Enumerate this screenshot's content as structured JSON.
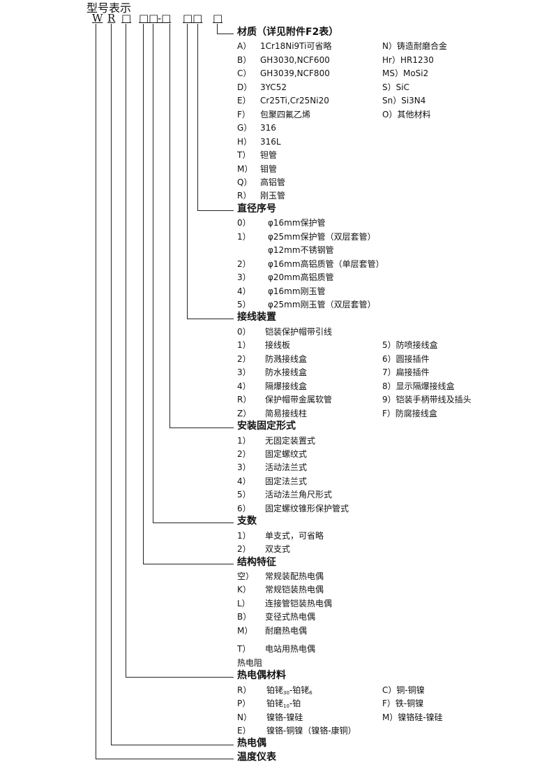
{
  "title": "型号表示",
  "codes": [
    "W",
    "R",
    "□",
    "□□",
    "-□",
    "□□",
    "□"
  ],
  "sections": [
    {
      "heading": "材质（详见附件F2表）",
      "items": [
        {
          "label": "A）",
          "text": "1Cr18Ni9Ti可省略",
          "right": "N）铸造耐磨合金"
        },
        {
          "label": "B）",
          "text": "GH3030,NCF600",
          "right": "Hr）HR1230"
        },
        {
          "label": "C）",
          "text": "GH3039,NCF800",
          "right": "MS）MoSi2"
        },
        {
          "label": "D）",
          "text": "3YC52",
          "right": "S）SiC"
        },
        {
          "label": "E）",
          "text": "Cr25Ti,Cr25Ni20",
          "right": "Sn）Si3N4"
        },
        {
          "label": "F）",
          "text": "包聚四氟乙烯",
          "right": "O）其他材料"
        },
        {
          "label": "G）",
          "text": "316"
        },
        {
          "label": "H）",
          "text": "316L"
        },
        {
          "label": "T）",
          "text": "钽管"
        },
        {
          "label": "M）",
          "text": "钼管"
        },
        {
          "label": "Q）",
          "text": "高铝管"
        },
        {
          "label": "R）",
          "text": "刚玉管"
        }
      ]
    },
    {
      "heading": "直径序号",
      "items": [
        {
          "label": "0）",
          "text": "φ16mm保护管"
        },
        {
          "label": "1）",
          "text": "φ25mm保护管（双层套管）"
        },
        {
          "label": "",
          "text": "φ12mm不锈钢管"
        },
        {
          "label": "2）",
          "text": "φ16mm高铝质管（单层套管）"
        },
        {
          "label": "3）",
          "text": "φ20mm高铝质管"
        },
        {
          "label": "4）",
          "text": "φ16mm刚玉管"
        },
        {
          "label": "5）",
          "text": "φ25mm刚玉管（双层套管）"
        }
      ]
    },
    {
      "heading": "接线装置",
      "items": [
        {
          "label": "0）",
          "text": "铠装保护帽带引线"
        },
        {
          "label": "1）",
          "text": "接线板",
          "right": "5）防喷接线盒"
        },
        {
          "label": "2）",
          "text": "防溅接线盒",
          "right": "6）圆接插件"
        },
        {
          "label": "3）",
          "text": "防水接线盒",
          "right": "7）扁接插件"
        },
        {
          "label": "4）",
          "text": "隔爆接线盒",
          "right": "8）显示隔爆接线盒"
        },
        {
          "label": "R）",
          "text": "保护帽带金属软管",
          "right": "9）铠装手柄带线及插头"
        },
        {
          "label": "Z）",
          "text": "简易接线柱",
          "right": "F）防腐接线盒"
        }
      ]
    },
    {
      "heading": "安装固定形式",
      "items": [
        {
          "label": "1）",
          "text": "无固定装置式"
        },
        {
          "label": "2）",
          "text": "固定螺纹式"
        },
        {
          "label": "3）",
          "text": "活动法兰式"
        },
        {
          "label": "4）",
          "text": "固定法兰式"
        },
        {
          "label": "5）",
          "text": "活动法兰角尺形式"
        },
        {
          "label": "6）",
          "text": "固定螺纹锥形保护管式"
        }
      ]
    },
    {
      "heading": "支数",
      "items": [
        {
          "label": "1）",
          "text": "单支式，可省略"
        },
        {
          "label": "2）",
          "text": "双支式"
        }
      ]
    },
    {
      "heading": "结构特征",
      "items": [
        {
          "label": "空）",
          "text": "常规装配热电偶"
        },
        {
          "label": "K）",
          "text": "常规铠装热电偶"
        },
        {
          "label": "L）",
          "text": "连接管铠装热电偶"
        },
        {
          "label": "B）",
          "text": "变径式热电偶"
        },
        {
          "label": "M）",
          "text": "耐磨热电偶"
        },
        {
          "label": "T）",
          "text": "电站用热电偶"
        },
        {
          "label": "热电阻",
          "text": ""
        }
      ]
    },
    {
      "heading": "热电偶材料",
      "items": [
        {
          "label": "R）",
          "segs": [
            {
              "t": "铂铑"
            },
            {
              "t": "30",
              "sub": true
            },
            {
              "t": "-铂铑"
            },
            {
              "t": "6",
              "sub": true
            }
          ],
          "right": "C）铜-铜镍"
        },
        {
          "label": "P）",
          "segs": [
            {
              "t": "铂铑"
            },
            {
              "t": "10",
              "sub": true
            },
            {
              "t": "-铂"
            }
          ],
          "right": "F）铁-铜镍"
        },
        {
          "label": "N）",
          "text": "镍铬-镍硅",
          "right": "M）镍铬硅-镍硅"
        },
        {
          "label": "E）",
          "text": "镍铬-铜镍（镍铬-康铜）"
        }
      ]
    },
    {
      "heading": "热电偶",
      "items": []
    },
    {
      "heading": "温度仪表",
      "items": []
    }
  ]
}
